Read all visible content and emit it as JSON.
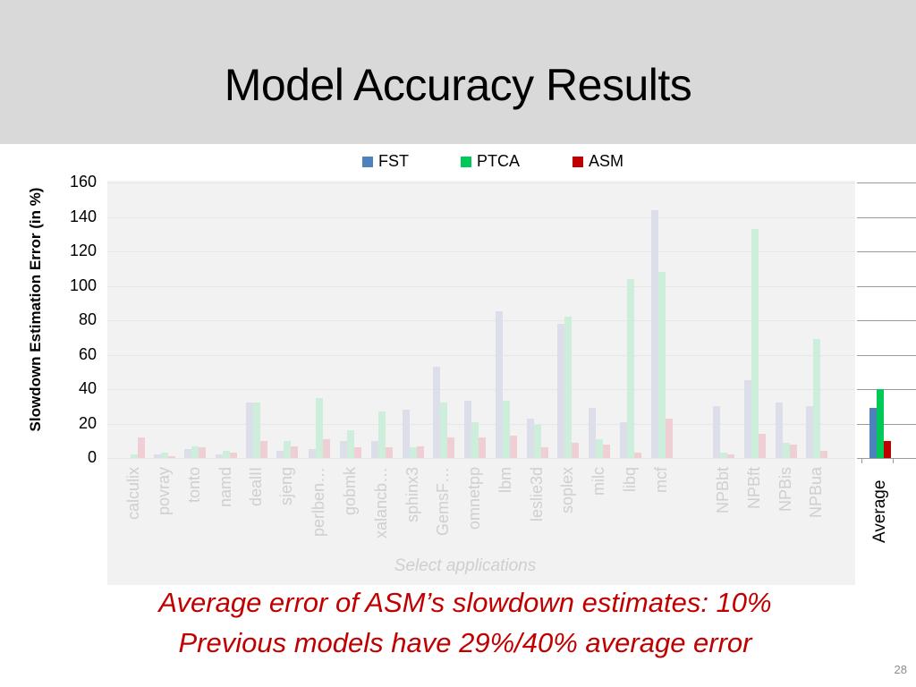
{
  "slide": {
    "title": "Model Accuracy Results",
    "page_number": "28",
    "captions": [
      "Average error of ASM’s slowdown estimates: 10%",
      "Previous models have 29%/40% average error"
    ],
    "colors": {
      "title_bar_bg": "#d9d9d9",
      "caption": "#c00000",
      "FST": "#4f81bd",
      "PTCA": "#00c957",
      "ASM": "#c00000",
      "faded_FST": "#dcdfea",
      "faded_PTCA": "#cdeedb",
      "faded_ASM": "#efcfd3",
      "faded_bg": "#f2f2f2"
    }
  },
  "chart_data": {
    "type": "bar",
    "title": "",
    "xlabel": "Select applications",
    "ylabel": "Slowdown Estimation Error (in %)",
    "ylim": [
      0,
      160
    ],
    "yticks": [
      0,
      20,
      40,
      60,
      80,
      100,
      120,
      140,
      160
    ],
    "grid": true,
    "legend_position": "top",
    "legend": [
      "FST",
      "PTCA",
      "ASM"
    ],
    "categories": [
      "calculix",
      "povray",
      "tonto",
      "namd",
      "dealII",
      "sjeng",
      "perlben…",
      "gobmk",
      "xalancb…",
      "sphinx3",
      "GemsF…",
      "omnetpp",
      "lbm",
      "leslie3d",
      "soplex",
      "milc",
      "libq",
      "mcf",
      "",
      "NPBbt",
      "NPBft",
      "NPBis",
      "NPBua",
      "",
      "Average"
    ],
    "series": [
      {
        "name": "FST",
        "values": [
          0,
          2,
          5,
          2,
          32,
          4,
          5,
          10,
          10,
          28,
          53,
          33,
          85,
          23,
          78,
          29,
          21,
          144,
          null,
          30,
          45,
          32,
          30,
          null,
          29
        ]
      },
      {
        "name": "PTCA",
        "values": [
          2,
          3,
          7,
          4,
          32,
          10,
          35,
          16,
          27,
          6,
          32,
          21,
          33,
          19,
          82,
          11,
          104,
          108,
          null,
          3,
          133,
          9,
          69,
          null,
          40
        ]
      },
      {
        "name": "ASM",
        "values": [
          12,
          1,
          6,
          3,
          10,
          7,
          11,
          6,
          6,
          7,
          12,
          12,
          13,
          6,
          9,
          8,
          3,
          23,
          null,
          2,
          14,
          8,
          4,
          null,
          10
        ]
      }
    ],
    "annotations": [
      "Select applications"
    ]
  }
}
